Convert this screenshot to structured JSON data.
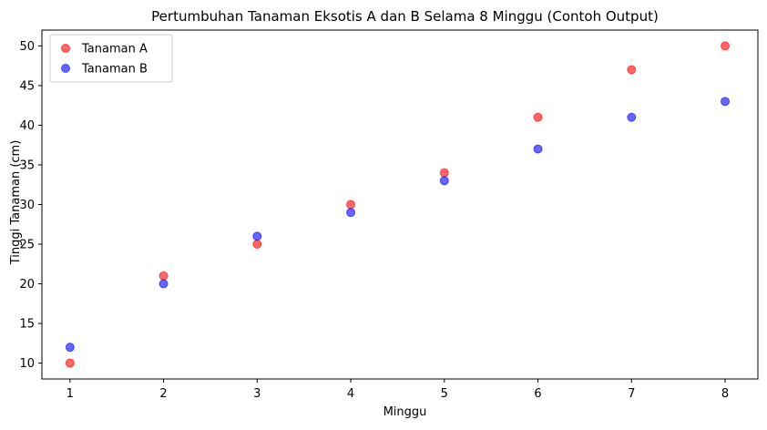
{
  "chart_data": {
    "type": "scatter",
    "title": "Pertumbuhan Tanaman Eksotis A dan B Selama 8 Minggu (Contoh Output)",
    "xlabel": "Minggu",
    "ylabel": "Tinggi Tanaman (cm)",
    "xlim": [
      0.7,
      8.35
    ],
    "ylim": [
      8,
      52
    ],
    "xticks": [
      1,
      2,
      3,
      4,
      5,
      6,
      7,
      8
    ],
    "yticks": [
      10,
      15,
      20,
      25,
      30,
      35,
      40,
      45,
      50
    ],
    "grid": false,
    "legend_position": "top-left",
    "series": [
      {
        "name": "Tanaman A",
        "color": "#ff0000",
        "x": [
          1,
          2,
          3,
          4,
          5,
          6,
          7,
          8
        ],
        "y": [
          10,
          21,
          25,
          30,
          34,
          41,
          47,
          50
        ]
      },
      {
        "name": "Tanaman B",
        "color": "#0000ff",
        "x": [
          1,
          2,
          3,
          4,
          5,
          6,
          7,
          8
        ],
        "y": [
          12,
          20,
          26,
          29,
          33,
          37,
          41,
          43
        ]
      }
    ]
  }
}
